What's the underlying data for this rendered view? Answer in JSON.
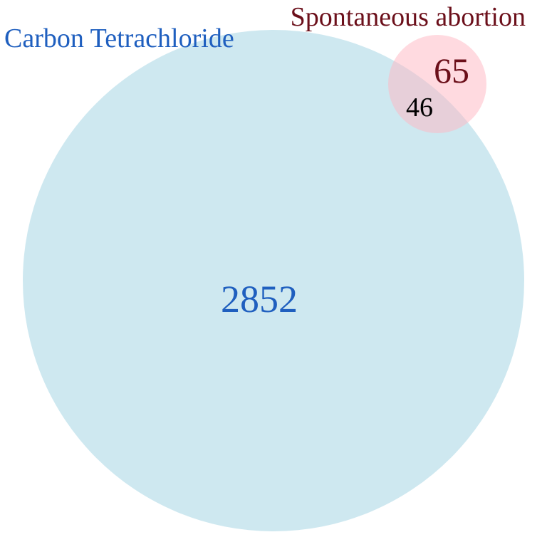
{
  "venn": {
    "sets": [
      {
        "label": "Carbon Tetrachloride",
        "only_count": "2852",
        "fill_color": "#add8e6",
        "fill_opacity": 0.6,
        "text_color": "#1f5fbf"
      },
      {
        "label": "Spontaneous abortion",
        "only_count": "65",
        "fill_color": "#ffb6c1",
        "fill_opacity": 0.5,
        "text_color": "#6b0f1a"
      }
    ],
    "intersection": {
      "count": "46",
      "text_color": "#000000"
    }
  }
}
